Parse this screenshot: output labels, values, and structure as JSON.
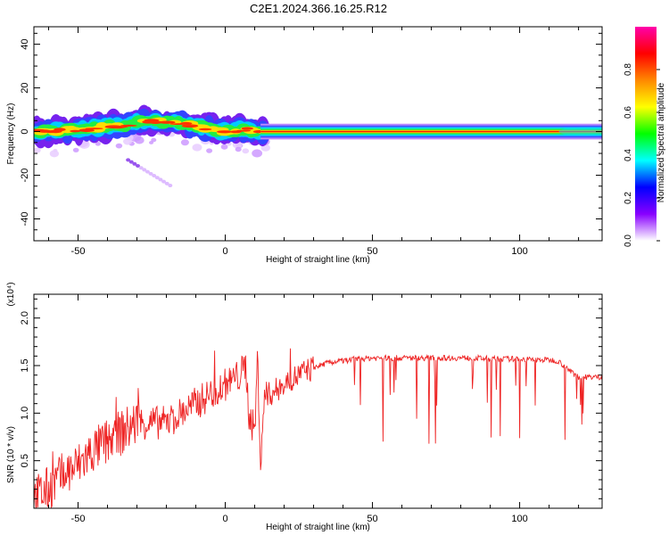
{
  "title": "C2E1.2024.366.16.25.R12",
  "chart_data": [
    {
      "type": "heatmap",
      "xlabel": "Height of straight line (km)",
      "ylabel": "Frequency (Hz)",
      "xlim": [
        -65,
        128
      ],
      "ylim": [
        -50,
        48
      ],
      "xticks": [
        -50,
        0,
        50,
        100
      ],
      "yticks": [
        -40,
        -20,
        0,
        20,
        40
      ],
      "ridge": [
        {
          "x": -65,
          "y": 0
        },
        {
          "x": -55,
          "y": 0.5
        },
        {
          "x": -45,
          "y": 1.5
        },
        {
          "x": -35,
          "y": 3
        },
        {
          "x": -25,
          "y": 5
        },
        {
          "x": -15,
          "y": 4
        },
        {
          "x": -8,
          "y": 2
        },
        {
          "x": 0,
          "y": 0
        },
        {
          "x": 6,
          "y": 1
        },
        {
          "x": 12,
          "y": 0
        },
        {
          "x": 128,
          "y": 0
        }
      ],
      "colorbar": {
        "label": "Normalized spectral amplitude",
        "range": [
          0,
          1
        ],
        "ticks": [
          "0.0",
          "0.2",
          "0.4",
          "0.6",
          "0.8"
        ],
        "colors": [
          "#ffffff",
          "#8800ff",
          "#0000ff",
          "#00ffff",
          "#00ff00",
          "#ffff00",
          "#ff8800",
          "#ff0000",
          "#ff00aa"
        ]
      }
    },
    {
      "type": "line",
      "xlabel": "Height of straight line (km)",
      "ylabel": "SNR (10 * v/v)",
      "scale_label": "(x10⁴)",
      "xlim": [
        -65,
        128
      ],
      "ylim": [
        0,
        2.25
      ],
      "xticks": [
        -50,
        0,
        50,
        100
      ],
      "yticks": [
        "0.5",
        "1.0",
        "1.5",
        "2.0"
      ],
      "series": [
        {
          "color": "#ee2222",
          "x": [
            -65,
            -60,
            -55,
            -50,
            -45,
            -40,
            -35,
            -30,
            -25,
            -20,
            -15,
            -10,
            -5,
            0,
            5,
            7,
            8,
            10,
            11,
            12,
            13,
            15,
            18,
            20,
            25,
            30,
            35,
            40,
            45,
            50,
            55,
            60,
            65,
            70,
            75,
            80,
            85,
            90,
            95,
            100,
            105,
            110,
            113,
            115,
            118,
            120,
            125,
            128
          ],
          "values": [
            0.1,
            0.2,
            0.35,
            0.45,
            0.6,
            0.7,
            0.8,
            0.9,
            0.9,
            0.9,
            1.0,
            1.1,
            1.2,
            1.3,
            1.4,
            1.5,
            1.0,
            0.8,
            1.6,
            0.4,
            1.1,
            1.2,
            1.25,
            1.3,
            1.4,
            1.48,
            1.53,
            1.55,
            1.57,
            1.58,
            1.58,
            1.58,
            1.58,
            1.58,
            1.58,
            1.58,
            1.58,
            1.57,
            1.57,
            1.57,
            1.56,
            1.56,
            1.55,
            1.5,
            1.42,
            1.38,
            1.38,
            1.38
          ]
        }
      ]
    }
  ]
}
